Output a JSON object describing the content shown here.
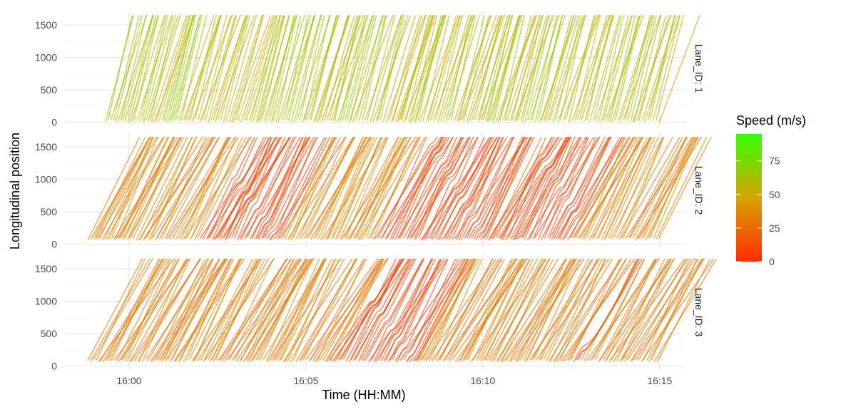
{
  "chart_data": {
    "type": "line",
    "title": "",
    "xlabel": "Time (HH:MM)",
    "ylabel": "Longitudinal position",
    "x_ticks": [
      "16:00",
      "16:05",
      "16:10",
      "16:15"
    ],
    "y_ticks": [
      0,
      500,
      1000,
      1500
    ],
    "xlim": [
      "15:58:10",
      "16:15:45"
    ],
    "ylim": [
      -60,
      1720
    ],
    "grid": true,
    "facet_variable": "Lane_ID",
    "panels": [
      {
        "label": "Lane_ID: 1",
        "start_time": "15:59:20",
        "end_time": "16:15:00",
        "y_range": [
          0,
          1650
        ],
        "mean_speed": 58,
        "congestion_waves": []
      },
      {
        "label": "Lane_ID: 2",
        "start_time": "15:58:50",
        "end_time": "16:15:00",
        "y_range": [
          60,
          1650
        ],
        "mean_speed": 33,
        "congestion_waves": [
          {
            "start_time": "16:03:00",
            "start_pos": 1000,
            "end_time": "16:04:10",
            "end_pos": 100
          },
          {
            "start_time": "16:08:30",
            "start_pos": 1600,
            "end_time": "16:10:00",
            "end_pos": 100
          },
          {
            "start_time": "16:11:40",
            "start_pos": 1350,
            "end_time": "16:12:40",
            "end_pos": 400
          }
        ]
      },
      {
        "label": "Lane_ID: 3",
        "start_time": "15:58:50",
        "end_time": "16:15:00",
        "y_range": [
          60,
          1650
        ],
        "mean_speed": 30,
        "congestion_waves": [
          {
            "start_time": "16:06:50",
            "start_pos": 1000,
            "end_time": "16:08:00",
            "end_pos": 120
          },
          {
            "start_time": "16:12:50",
            "start_pos": 250,
            "end_time": "16:13:35",
            "end_pos": 950
          }
        ]
      }
    ],
    "color_scale": {
      "title": "Speed (m/s)",
      "ticks": [
        0,
        25,
        50,
        75
      ],
      "range": [
        0,
        95
      ],
      "colors": [
        "#ff2a00",
        "#d8a400",
        "#33ff00"
      ]
    }
  }
}
